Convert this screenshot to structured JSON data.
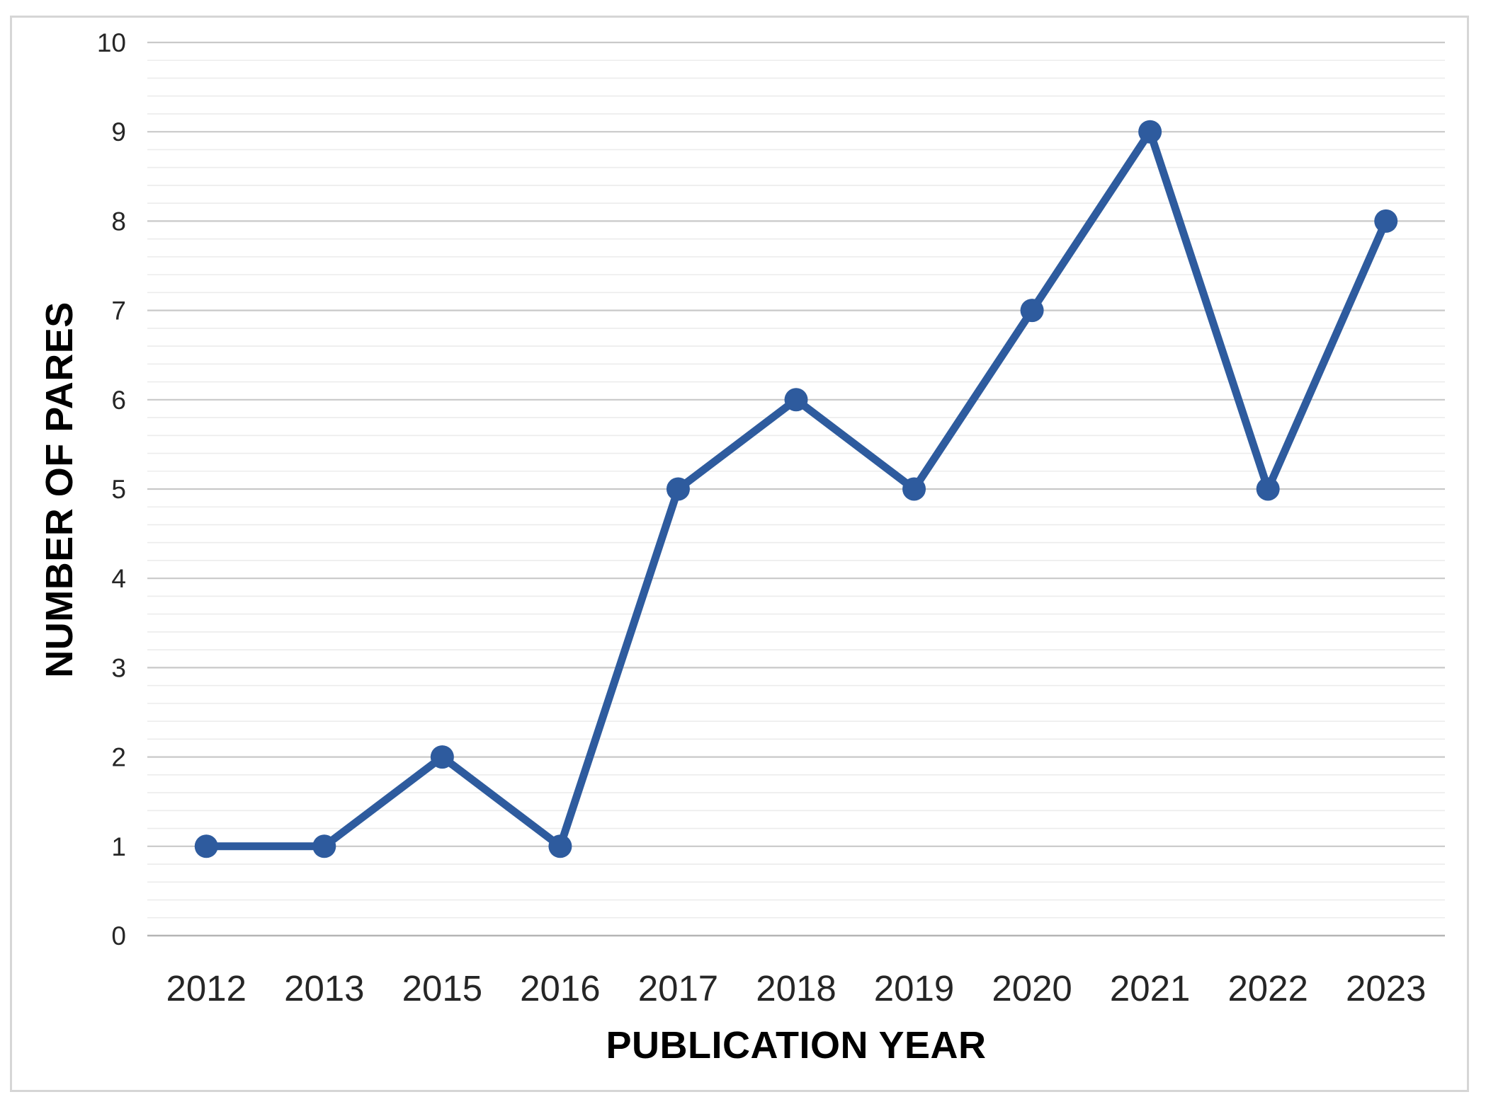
{
  "figure": {
    "background": "#FFFFFF",
    "border_color": "#D6D6D6"
  },
  "chart_data": {
    "type": "line",
    "title": "",
    "xlabel": "PUBLICATION YEAR",
    "ylabel": "NUMBER OF PARES",
    "categories": [
      "2012",
      "2013",
      "2015",
      "2016",
      "2017",
      "2018",
      "2019",
      "2020",
      "2021",
      "2022",
      "2023"
    ],
    "series": [
      {
        "values": [
          1,
          1,
          2,
          1,
          5,
          6,
          5,
          7,
          9,
          5,
          8
        ]
      }
    ],
    "ylim": [
      0,
      10
    ],
    "y_major_step": 1,
    "y_minor_step": 0.2,
    "grid": "horizontal major + minor gridlines",
    "legend": "none",
    "marker": "circle",
    "line_color": "#2E5B9E",
    "marker_color": "#2E5B9E",
    "major_grid_color": "#C9C9C9",
    "minor_grid_color": "#ECECEC",
    "axis_line_color": "#B5B5B5",
    "tick_label_color": "#262626",
    "axis_title_color": "#000000"
  }
}
